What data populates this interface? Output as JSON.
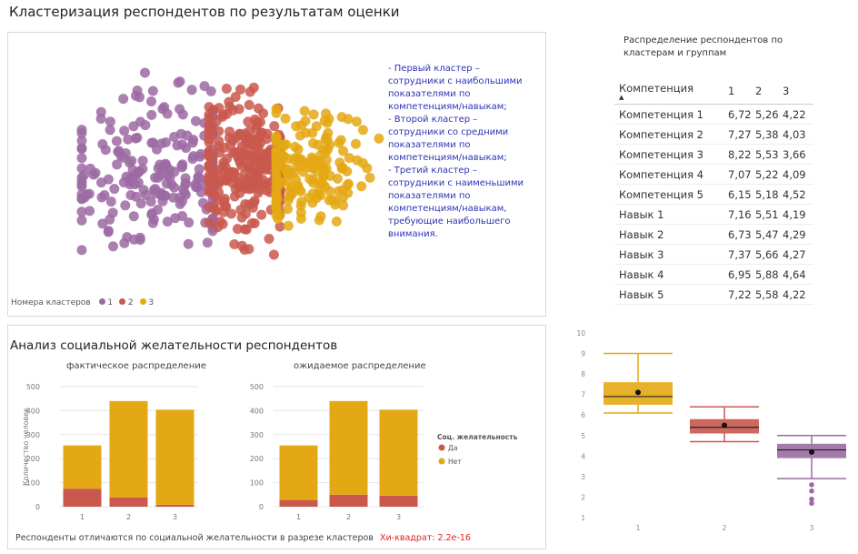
{
  "page_title": "Кластеризация респондентов по результатам оценки",
  "colors": {
    "cluster1": "#9c6aa3",
    "cluster2": "#c9584d",
    "cluster3": "#e4a814",
    "da": "#c9584d",
    "net": "#e4a814"
  },
  "scatter": {
    "descriptions": [
      "- Первый кластер  – сотрудники с наибольшими показателями по компетенциям/навыкам;",
      "- Второй кластер – сотрудники со средними показателями по компетенциям/навыкам;",
      "- Третий кластер  – сотрудники с наименьшими показателями по компетенциям/навыкам, требующие наибольшего внимания."
    ],
    "legend_title": "Номера кластеров",
    "legend_items": [
      "1",
      "2",
      "3"
    ]
  },
  "table": {
    "title": "Распределение респондентов по кластерам и группам",
    "headers": [
      "Компетенция",
      "1",
      "2",
      "3"
    ],
    "rows": [
      [
        "Компетенция 1",
        "6,72",
        "5,26",
        "4,22"
      ],
      [
        "Компетенция 2",
        "7,27",
        "5,38",
        "4,03"
      ],
      [
        "Компетенция 3",
        "8,22",
        "5,53",
        "3,66"
      ],
      [
        "Компетенция 4",
        "7,07",
        "5,22",
        "4,09"
      ],
      [
        "Компетенция 5",
        "6,15",
        "5,18",
        "4,52"
      ],
      [
        "Навык 1",
        "7,16",
        "5,51",
        "4,19"
      ],
      [
        "Навык 2",
        "6,73",
        "5,47",
        "4,29"
      ],
      [
        "Навык 3",
        "7,37",
        "5,66",
        "4,27"
      ],
      [
        "Навык 4",
        "6,95",
        "5,88",
        "4,64"
      ],
      [
        "Навык 5",
        "7,22",
        "5,58",
        "4,22"
      ]
    ]
  },
  "social": {
    "title": "Анализ социальной желательности респондентов",
    "note": "Респонденты отличаются по социальной желательности в разрезе кластеров",
    "chi": "Хи-квадрат: 2.2e-16"
  },
  "chart_data": [
    {
      "type": "bar",
      "stacked": true,
      "title": "фактическое распределение",
      "categories": [
        "1",
        "2",
        "3"
      ],
      "series": [
        {
          "name": "Да",
          "values": [
            75,
            38,
            8
          ]
        },
        {
          "name": "Нет",
          "values": [
            180,
            402,
            396
          ]
        }
      ],
      "ylabel": "Количество человек",
      "ylim": [
        0,
        500
      ],
      "yticks": [
        "0",
        "100",
        "200",
        "300",
        "400",
        "500"
      ]
    },
    {
      "type": "bar",
      "stacked": true,
      "title": "ожидаемое распределение",
      "categories": [
        "1",
        "2",
        "3"
      ],
      "series": [
        {
          "name": "Да",
          "values": [
            28,
            50,
            46
          ]
        },
        {
          "name": "Нет",
          "values": [
            227,
            390,
            358
          ]
        }
      ],
      "ylim": [
        0,
        500
      ],
      "yticks": [
        "0",
        "100",
        "200",
        "300",
        "400",
        "500"
      ],
      "legend_title": "Соц. желательность",
      "legend": [
        "Да",
        "Нет"
      ]
    },
    {
      "type": "boxplot",
      "categories": [
        "1",
        "2",
        "3"
      ],
      "ylim": [
        1,
        10
      ],
      "yticks": [
        "1",
        "2",
        "3",
        "4",
        "5",
        "6",
        "7",
        "8",
        "9",
        "10"
      ],
      "boxes": [
        {
          "name": "1",
          "min": 6.1,
          "q1": 6.5,
          "median": 6.9,
          "q3": 7.6,
          "max": 9.0,
          "mean": 7.1,
          "outliers": []
        },
        {
          "name": "2",
          "min": 4.7,
          "q1": 5.1,
          "median": 5.4,
          "q3": 5.8,
          "max": 6.4,
          "mean": 5.5,
          "outliers": []
        },
        {
          "name": "3",
          "min": 2.9,
          "q1": 3.9,
          "median": 4.3,
          "q3": 4.6,
          "max": 5.0,
          "mean": 4.2,
          "outliers": [
            2.6,
            2.3,
            1.9,
            1.7
          ]
        }
      ]
    }
  ]
}
